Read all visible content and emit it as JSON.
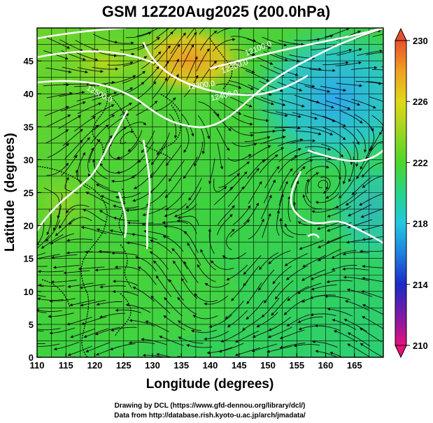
{
  "title": "GSM 12Z20Aug2025 (200.0hPa)",
  "xlabel": "Longitude (degrees)",
  "ylabel": "Latitude  (degrees)",
  "footer": {
    "line1": "Drawing by DCL (https://www.gfd-dennou.org/library/dcl/)",
    "line2": "Data from http://database.rish.kyoto-u.ac.jp/arch/jmadata/"
  },
  "map": {
    "lon_range": [
      110,
      170
    ],
    "lat_range": [
      0,
      50
    ],
    "lon_ticks": [
      "110",
      "115",
      "120",
      "125",
      "130",
      "135",
      "140",
      "145",
      "150",
      "155",
      "160",
      "165"
    ],
    "lat_ticks": [
      "0",
      "5",
      "10",
      "15",
      "20",
      "25",
      "30",
      "35",
      "40",
      "45"
    ],
    "grid": true
  },
  "colorbar": {
    "min": 210,
    "max": 230,
    "tick_labels": [
      "230",
      "226",
      "222",
      "218",
      "214",
      "210"
    ],
    "colors": [
      "#e8107a",
      "#7a1aa8",
      "#1a2ac8",
      "#1f7ee0",
      "#21c8e0",
      "#26d48a",
      "#4dd62a",
      "#9ad61f",
      "#e0d81a",
      "#f0a020",
      "#e8502a"
    ]
  },
  "contour_labels": [
    "12500.0",
    "12400.0",
    "12300.0",
    "12200.0",
    "12100.0"
  ]
}
